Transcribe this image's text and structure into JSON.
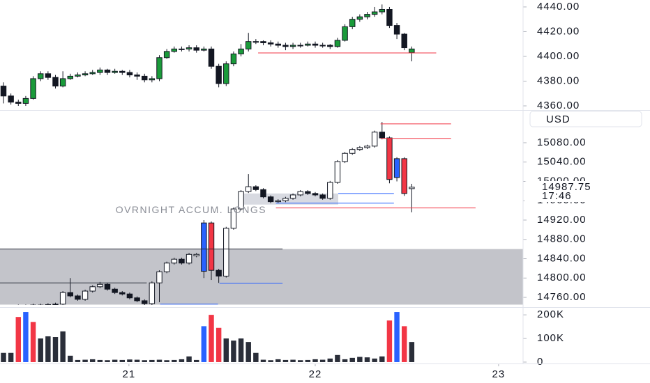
{
  "chart_data": [
    {
      "type": "candlestick",
      "xlim": [
        -0.47,
        70.0
      ],
      "ylim": [
        4357.2,
        4445.6
      ],
      "yticks": [
        {
          "value": 4360,
          "label": "4360.00"
        },
        {
          "value": 4380,
          "label": "4380.00"
        },
        {
          "value": 4400,
          "label": "4400.00"
        },
        {
          "value": 4420,
          "label": "4420.00"
        },
        {
          "value": 4440,
          "label": "4440.00"
        }
      ],
      "up_color": "#1a9b3a",
      "down_color": "#131722",
      "border_color": "#131722",
      "open": [
        4376,
        4368,
        4363,
        4362,
        4366,
        4382,
        4386,
        4383,
        4376,
        4382,
        4384,
        4385,
        4386,
        4387,
        4389,
        4387,
        4388,
        4387,
        4385,
        4384,
        4381,
        4382,
        4399,
        4404,
        4406,
        4406,
        4407,
        4405,
        4406,
        4392,
        4378,
        4394,
        4402,
        4406,
        4412,
        4412,
        4411,
        4410,
        4409,
        4408,
        4409,
        4409,
        4410,
        4409,
        4409,
        4408,
        4413,
        4424,
        4430,
        4432,
        4434,
        4436,
        4438,
        4425,
        4418,
        4403
      ],
      "high": [
        4379,
        4370,
        4365,
        4368,
        4384,
        4388,
        4388,
        4385,
        4388,
        4386,
        4387,
        4388,
        4389,
        4391,
        4390,
        4390,
        4389,
        4389,
        4387,
        4386,
        4384,
        4401,
        4406,
        4408,
        4408,
        4409,
        4409,
        4408,
        4408,
        4394,
        4396,
        4404,
        4410,
        4419,
        4414,
        4413,
        4413,
        4412,
        4411,
        4411,
        4411,
        4412,
        4412,
        4411,
        4410,
        4415,
        4426,
        4432,
        4434,
        4436,
        4440,
        4442,
        4440,
        4427,
        4419,
        4408
      ],
      "low": [
        4362,
        4361,
        4360,
        4360,
        4365,
        4380,
        4381,
        4374,
        4375,
        4381,
        4383,
        4384,
        4385,
        4385,
        4385,
        4386,
        4385,
        4383,
        4381,
        4379,
        4379,
        4380,
        4398,
        4403,
        4404,
        4404,
        4403,
        4404,
        4390,
        4375,
        4376,
        4392,
        4400,
        4404,
        4410,
        4409,
        4408,
        4407,
        4405,
        4406,
        4407,
        4408,
        4407,
        4407,
        4406,
        4407,
        4412,
        4422,
        4428,
        4430,
        4432,
        4434,
        4423,
        4414,
        4405,
        4396
      ],
      "close": [
        4368,
        4363,
        4362,
        4366,
        4382,
        4386,
        4383,
        4376,
        4382,
        4384,
        4385,
        4386,
        4387,
        4389,
        4387,
        4388,
        4387,
        4385,
        4384,
        4381,
        4382,
        4399,
        4404,
        4406,
        4406,
        4407,
        4405,
        4406,
        4392,
        4378,
        4394,
        4402,
        4406,
        4412,
        4412,
        4411,
        4410,
        4409,
        4408,
        4409,
        4409,
        4410,
        4409,
        4409,
        4408,
        4413,
        4424,
        4430,
        4432,
        4434,
        4436,
        4438,
        4425,
        4418,
        4407,
        4406
      ],
      "levels": [
        {
          "price": 4402.8,
          "x": [
            34.3,
            58.3
          ],
          "color": "#f23645"
        }
      ]
    },
    {
      "type": "candlestick",
      "xlim": [
        -0.47,
        70.0
      ],
      "ylim": [
        14744.2,
        15144.8
      ],
      "yticks": [
        {
          "value": 14760,
          "label": "14760.00"
        },
        {
          "value": 14800,
          "label": "14800.00"
        },
        {
          "value": 14840,
          "label": "14840.00"
        },
        {
          "value": 14880,
          "label": "14880.00"
        },
        {
          "value": 14920,
          "label": "14920.00"
        },
        {
          "value": 14960,
          "label": "14960.00"
        },
        {
          "value": 15000,
          "label": "15000.00"
        },
        {
          "value": 15040,
          "label": "15040.00"
        },
        {
          "value": 15080,
          "label": "15080.00"
        }
      ],
      "currency": "USD",
      "last_price": 14987.75,
      "countdown": "17:46",
      "up_color": "#ffffff",
      "down_color": "#131722",
      "border_color": "#131722",
      "accent": {
        "indices": [
          27,
          28,
          52,
          53,
          54
        ],
        "colors": [
          "#2962ff",
          "#f23645",
          "#f23645",
          "#2962ff",
          "#f23645"
        ]
      },
      "open": [
        14735,
        14730,
        14738,
        14742,
        14735,
        14744,
        14741,
        14745,
        14746,
        14770,
        14763,
        14756,
        14773,
        14782,
        14787,
        14777,
        14770,
        14767,
        14759,
        14753,
        14747,
        14790,
        14813,
        14831,
        14839,
        14831,
        14846,
        14814,
        14914,
        14816,
        14804,
        14903,
        14943,
        14979,
        14989,
        14983,
        14968,
        14958,
        14960,
        14965,
        14972,
        14979,
        14975,
        14972,
        14965,
        14998,
        15041,
        15058,
        15066,
        15070,
        15073,
        15102,
        15090,
        15008,
        15047,
        14985
      ],
      "high": [
        14738,
        14741,
        14745,
        14745,
        14747,
        14747,
        14748,
        14749,
        14773,
        14800,
        14766,
        14776,
        14785,
        14792,
        14790,
        14780,
        14773,
        14770,
        14762,
        14756,
        14793,
        14816,
        14834,
        14842,
        14842,
        14852,
        14852,
        14920,
        14917,
        14819,
        14906,
        14946,
        14982,
        15015,
        14992,
        14986,
        14971,
        14963,
        14968,
        14975,
        14982,
        14982,
        14978,
        14975,
        15001,
        15044,
        15061,
        15069,
        15073,
        15076,
        15105,
        15123,
        15093,
        15050,
        15050,
        14995
      ],
      "low": [
        14727,
        14727,
        14735,
        14732,
        14732,
        14738,
        14738,
        14742,
        14743,
        14760,
        14753,
        14753,
        14770,
        14779,
        14774,
        14767,
        14764,
        14756,
        14750,
        14744,
        14744,
        14750,
        14810,
        14828,
        14828,
        14828,
        14843,
        14800,
        14796,
        14790,
        14801,
        14900,
        14940,
        14976,
        14980,
        14965,
        14955,
        14955,
        14957,
        14962,
        14969,
        14972,
        14969,
        14962,
        14962,
        14995,
        15038,
        15055,
        15063,
        15067,
        15070,
        15087,
        14996,
        15000,
        14970,
        14936
      ],
      "close": [
        14730,
        14738,
        14742,
        14735,
        14744,
        14741,
        14745,
        14746,
        14770,
        14763,
        14756,
        14773,
        14782,
        14787,
        14777,
        14770,
        14767,
        14759,
        14753,
        14747,
        14790,
        14813,
        14831,
        14839,
        14831,
        14849,
        14849,
        14914,
        14816,
        14804,
        14903,
        14943,
        14979,
        14989,
        14983,
        14968,
        14958,
        14960,
        14965,
        14972,
        14979,
        14975,
        14972,
        14965,
        14998,
        15041,
        15058,
        15066,
        15070,
        15073,
        15102,
        15090,
        15004,
        15047,
        14975,
        14988
      ],
      "zones": [
        {
          "range": [
            14745,
            14860
          ],
          "x": [
            -0.47,
            70.0
          ],
          "color": "#b8bac1"
        },
        {
          "range": [
            14952,
            14975
          ],
          "x": [
            32.4,
            45.1
          ],
          "color": "#d1d4dc"
        }
      ],
      "levels": [
        {
          "price": 15119,
          "x": [
            50.8,
            60.3
          ],
          "color": "#f23645"
        },
        {
          "price": 15089,
          "x": [
            50.8,
            60.3
          ],
          "color": "#f23645"
        },
        {
          "price": 14945,
          "x": [
            36.7,
            63.6
          ],
          "color": "#f23645"
        },
        {
          "price": 14975,
          "x": [
            45.1,
            52.6
          ],
          "color": "#2962ff"
        },
        {
          "price": 14955,
          "x": [
            36.7,
            52.6
          ],
          "color": "#2962ff"
        },
        {
          "price": 14789,
          "x": [
            29.1,
            37.6
          ],
          "color": "#2962ff"
        },
        {
          "price": 14746,
          "x": [
            21.1,
            28.9
          ],
          "color": "#2962ff"
        },
        {
          "price": 14860,
          "x": [
            -0.47,
            37.6
          ],
          "color": "#2a2e39"
        },
        {
          "price": 14790,
          "x": [
            -0.47,
            19.3
          ],
          "color": "#2a2e39"
        }
      ],
      "annotations": [
        {
          "text": "OVRNIGHT ACCUM. LONGS",
          "x": 15.1,
          "price": 14940
        }
      ]
    },
    {
      "type": "bar",
      "xlim": [
        -0.47,
        70.0
      ],
      "ylim": [
        -6000,
        221000
      ],
      "yticks": [
        0,
        {
          "value": 100000,
          "label": "100K"
        },
        {
          "value": 200000,
          "label": "200K"
        }
      ],
      "xticks": [
        {
          "value": 16.9,
          "label": "21"
        },
        {
          "value": 42.0,
          "label": "22"
        },
        {
          "value": 66.7,
          "label": "23"
        }
      ],
      "color": "#2a2e39",
      "accent": {
        "indices": [
          2,
          3,
          4,
          27,
          28,
          29,
          52,
          53,
          54
        ],
        "colors": [
          "#f23645",
          "#2962ff",
          "#f23645",
          "#2962ff",
          "#f23645",
          "#f23645",
          "#f23645",
          "#2962ff",
          "#f23645"
        ]
      },
      "values": [
        39000,
        39000,
        191000,
        212000,
        170000,
        100000,
        109000,
        106000,
        130000,
        27000,
        9000,
        10000,
        12000,
        9000,
        8000,
        10000,
        9000,
        11000,
        10000,
        8000,
        9000,
        10000,
        8000,
        9000,
        12000,
        24000,
        9000,
        152000,
        200000,
        145000,
        100000,
        91000,
        100000,
        85000,
        39000,
        10000,
        8000,
        12000,
        9000,
        10000,
        8000,
        9000,
        12000,
        10000,
        15000,
        30000,
        12000,
        18000,
        22000,
        20000,
        15000,
        24000,
        176000,
        212000,
        152000,
        85000
      ]
    }
  ]
}
